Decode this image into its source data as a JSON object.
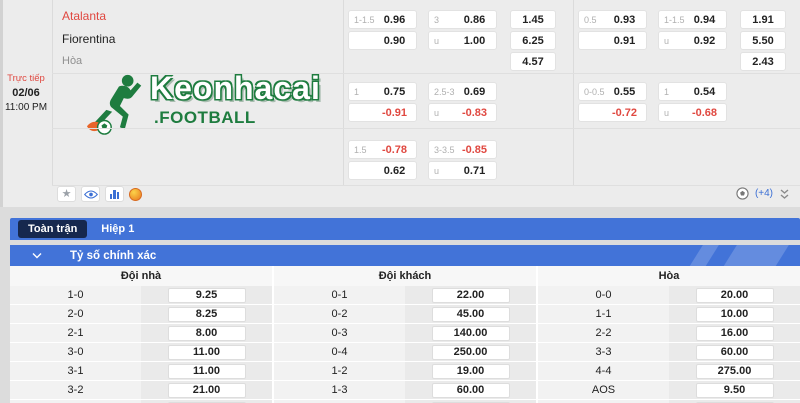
{
  "match": {
    "live_label": "Trực tiếp",
    "date": "02/06",
    "time": "11:00 PM",
    "home_team": "Atalanta",
    "away_team": "Fiorentina",
    "draw_label": "Hòa"
  },
  "logo": {
    "brand": "Keonhacai",
    "suffix": ".FOOTBALL"
  },
  "top_odds": {
    "groups": [
      {
        "bands": [
          {
            "hdp": [
              [
                "1-1.5",
                "0.96"
              ],
              [
                "",
                "0.90"
              ]
            ],
            "ou": [
              [
                "3",
                "0.86"
              ],
              [
                "u",
                "1.00"
              ]
            ],
            "x12": [
              "1.45",
              "6.25",
              "4.57"
            ]
          },
          {
            "hdp": [
              [
                "1",
                "0.75"
              ],
              [
                "",
                "-0.91"
              ]
            ],
            "ou": [
              [
                "2.5-3",
                "0.69"
              ],
              [
                "u",
                "-0.83"
              ]
            ],
            "x12": []
          },
          {
            "hdp": [
              [
                "1.5",
                "-0.78"
              ],
              [
                "",
                "0.62"
              ]
            ],
            "ou": [
              [
                "3-3.5",
                "-0.85"
              ],
              [
                "u",
                "0.71"
              ]
            ],
            "x12": []
          }
        ]
      },
      {
        "bands": [
          {
            "hdp": [
              [
                "0.5",
                "0.93"
              ],
              [
                "",
                "0.91"
              ]
            ],
            "ou": [
              [
                "1-1.5",
                "0.94"
              ],
              [
                "u",
                "0.92"
              ]
            ],
            "x12": [
              "1.91",
              "5.50",
              "2.43"
            ]
          },
          {
            "hdp": [
              [
                "0-0.5",
                "0.55"
              ],
              [
                "",
                "-0.72"
              ]
            ],
            "ou": [
              [
                "1",
                "0.54"
              ],
              [
                "u",
                "-0.68"
              ]
            ],
            "x12": []
          }
        ]
      }
    ]
  },
  "icons": {
    "match_icons": [
      "favorite-star",
      "watch-eye",
      "stats-chart",
      "hot-coin"
    ],
    "footer_icons": [
      "soccer-ball",
      "expand-chevrons"
    ]
  },
  "footer": {
    "more_label": "(+4)"
  },
  "tabs": {
    "full_match": "Toàn trận",
    "first_half": "Hiệp 1"
  },
  "section": {
    "title": "Tỷ số chính xác"
  },
  "score_table": {
    "headers": [
      "Đội nhà",
      "Đội khách",
      "Hòa"
    ],
    "columns": [
      {
        "rows": [
          [
            "1-0",
            "9.25"
          ],
          [
            "2-0",
            "8.25"
          ],
          [
            "2-1",
            "8.00"
          ],
          [
            "3-0",
            "11.00"
          ],
          [
            "3-1",
            "11.00"
          ],
          [
            "3-2",
            "21.00"
          ]
        ]
      },
      {
        "rows": [
          [
            "0-1",
            "22.00"
          ],
          [
            "0-2",
            "45.00"
          ],
          [
            "0-3",
            "140.00"
          ],
          [
            "0-4",
            "250.00"
          ],
          [
            "1-2",
            "19.00"
          ],
          [
            "1-3",
            "60.00"
          ]
        ]
      },
      {
        "rows": [
          [
            "0-0",
            "20.00"
          ],
          [
            "1-1",
            "10.00"
          ],
          [
            "2-2",
            "16.00"
          ],
          [
            "3-3",
            "60.00"
          ],
          [
            "4-4",
            "275.00"
          ],
          [
            "AOS",
            "9.50"
          ]
        ]
      }
    ],
    "partial_next_row": true
  },
  "colors": {
    "accent_blue": "#4273d8",
    "navy_pill": "#16284e",
    "odds_red": "#e04840",
    "logo_green": "#1e7c3f",
    "section_bg": "#ececec"
  }
}
